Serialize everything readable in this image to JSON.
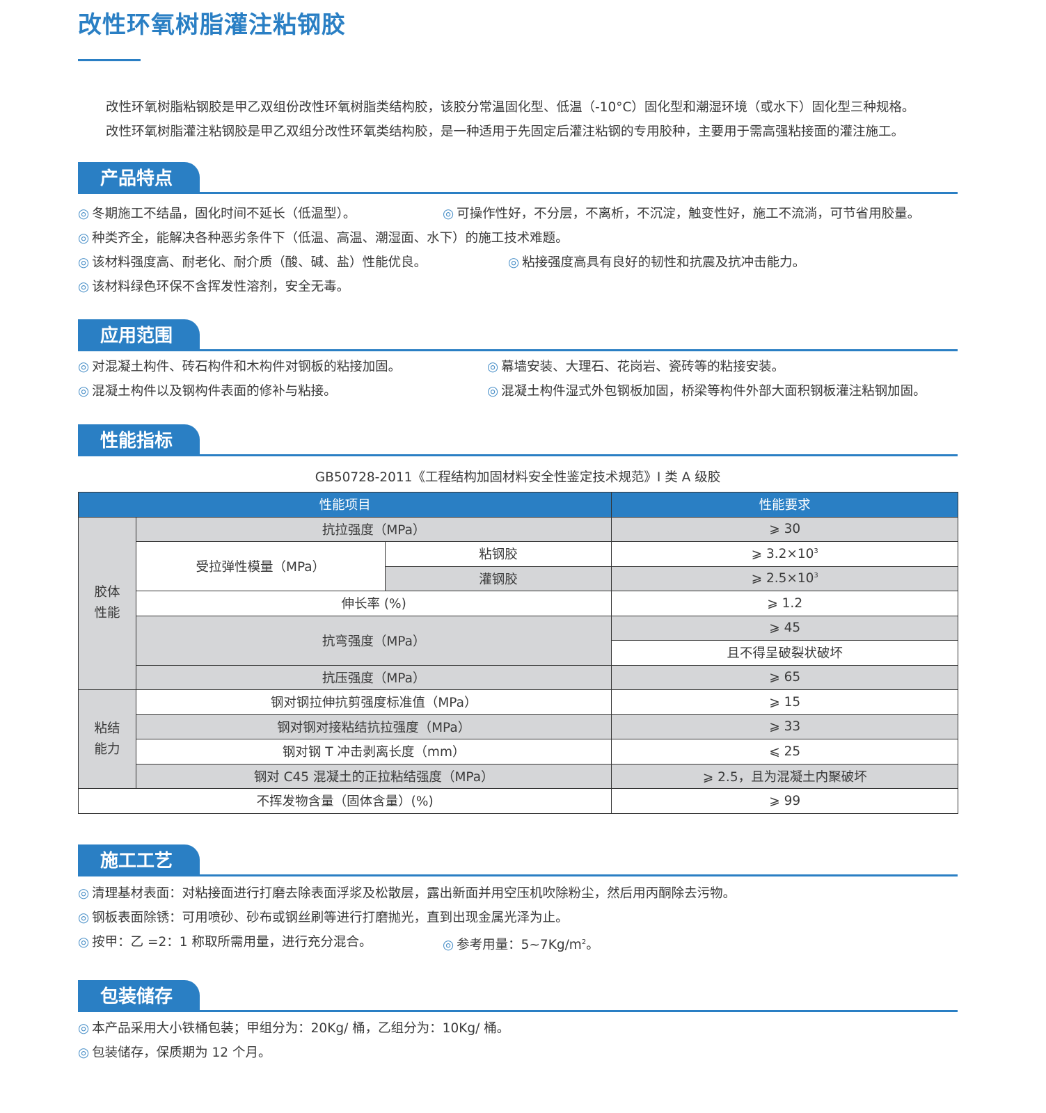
{
  "title": "改性环氧树脂灌注粘钢胶",
  "intro": [
    "改性环氧树脂粘钢胶是甲乙双组份改性环氧树脂类结构胶，该胶分常温固化型、低温（-10°C）固化型和潮湿环境（或水下）固化型三种规格。",
    "改性环氧树脂灌注粘钢胶是甲乙双组分改性环氧类结构胶，是一种适用于先固定后灌注粘钢的专用胶种，主要用于需高强粘接面的灌注施工。"
  ],
  "bullet": "◎",
  "sections": {
    "features": {
      "title": "产品特点",
      "lines": [
        [
          "冬期施工不结晶，固化时间不延长（低温型）。",
          "可操作性好，不分层，不离析，不沉淀，触变性好，施工不流淌，可节省用胶量。"
        ],
        [
          "种类齐全，能解决各种恶劣条件下（低温、高温、潮湿面、水下）的施工技术难题。"
        ],
        [
          "该材料强度高、耐老化、耐介质（酸、碱、盐）性能优良。",
          "粘接强度高具有良好的韧性和抗震及抗冲击能力。"
        ],
        [
          "该材料绿色环保不含挥发性溶剂，安全无毒。"
        ]
      ]
    },
    "application": {
      "title": "应用范围",
      "lines": [
        [
          "对混凝土构件、砖石构件和木构件对钢板的粘接加固。",
          "幕墙安装、大理石、花岗岩、瓷砖等的粘接安装。"
        ],
        [
          "混凝土构件以及钢构件表面的修补与粘接。",
          "混凝土构件湿式外包钢板加固，桥梁等构件外部大面积钢板灌注粘钢加固。"
        ]
      ]
    },
    "performance": {
      "title": "性能指标",
      "caption": "GB50728-2011《工程结构加固材料安全性鉴定技术规范》I 类 A 级胶",
      "table": {
        "headers": [
          "性能项目",
          "性能要求"
        ],
        "groups": {
          "body": "胶体\n性能",
          "bond": "粘结能力"
        },
        "rows": {
          "tensile": [
            "抗拉强度（MPa）",
            "⩾ 30"
          ],
          "modulus": "受拉弹性模量（MPa）",
          "modulus_a": [
            "粘钢胶",
            "⩾ 3.2×10",
            "3"
          ],
          "modulus_b": [
            "灌钢胶",
            "⩾ 2.5×10",
            "3"
          ],
          "elong": [
            "伸长率 (%)",
            "⩾ 1.2"
          ],
          "bend": [
            "抗弯强度（MPa）",
            "⩾ 45",
            "且不得呈破裂状破坏"
          ],
          "compress": [
            "抗压强度（MPa）",
            "⩾ 65"
          ],
          "shear": [
            "钢对钢拉伸抗剪强度标准值（MPa）",
            "⩾ 15"
          ],
          "butt": [
            "钢对钢对接粘结抗拉强度（MPa）",
            "⩾ 33"
          ],
          "peel": [
            "钢对钢 T 冲击剥离长度（mm）",
            "⩽ 25"
          ],
          "c45": [
            "钢对 C45 混凝土的正拉粘结强度（MPa）",
            "⩾ 2.5，且为混凝土内聚破坏"
          ],
          "solid": [
            "不挥发物含量（固体含量）(%)",
            "⩾ 99"
          ]
        }
      }
    },
    "construction": {
      "title": "施工工艺",
      "lines": [
        [
          "清理基材表面：对粘接面进行打磨去除表面浮浆及松散层，露出新面并用空压机吹除粉尘，然后用丙酮除去污物。"
        ],
        [
          "钢板表面除锈：可用喷砂、砂布或钢丝刷等进行打磨抛光，直到出现金属光泽为止。"
        ],
        [
          "按甲：乙 =2：1 称取所需用量，进行充分混合。",
          "参考用量：5~7Kg/m",
          "2",
          "。"
        ]
      ]
    },
    "packaging": {
      "title": "包装储存",
      "lines": [
        [
          "本产品采用大小铁桶包装；甲组分为：20Kg/ 桶，乙组分为：10Kg/ 桶。"
        ],
        [
          "包装储存，保质期为 12 个月。"
        ]
      ]
    }
  },
  "colors": {
    "accent": "#2a7fc4",
    "row_gray": "#d5d6d8"
  }
}
